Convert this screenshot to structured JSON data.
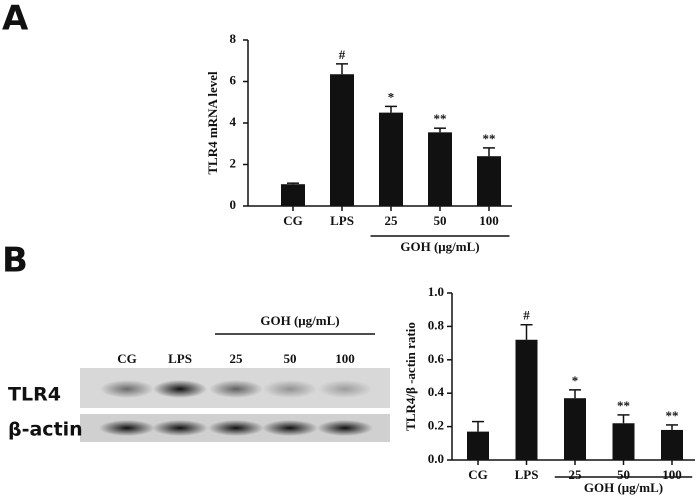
{
  "panels": [
    "A",
    "B"
  ],
  "blot": {
    "group_label": "GOH (μg/mL)",
    "lanes": [
      "CG",
      "LPS",
      "25",
      "50",
      "100"
    ],
    "rows": [
      "TLR4",
      "β-actin"
    ]
  },
  "chart_data": [
    {
      "type": "bar",
      "ylabel": "TLR4 mRNA level",
      "group_label": "GOH (μg/mL)",
      "categories": [
        "CG",
        "LPS",
        "25",
        "50",
        "100"
      ],
      "values": [
        1.05,
        6.35,
        4.5,
        3.55,
        2.4
      ],
      "errors": [
        0.05,
        0.5,
        0.3,
        0.2,
        0.4
      ],
      "annotations": [
        null,
        "#",
        "*",
        "**",
        "**"
      ],
      "color": "#111111",
      "ylim": [
        0,
        8
      ],
      "yticks": [
        0,
        2,
        4,
        6,
        8
      ]
    },
    {
      "type": "bar",
      "ylabel": "TLR4/β -actin ratio",
      "group_label": "GOH (μg/mL)",
      "categories": [
        "CG",
        "LPS",
        "25",
        "50",
        "100"
      ],
      "values": [
        0.17,
        0.72,
        0.37,
        0.22,
        0.18
      ],
      "errors": [
        0.06,
        0.09,
        0.05,
        0.05,
        0.03
      ],
      "annotations": [
        null,
        "#",
        "*",
        "**",
        "**"
      ],
      "color": "#111111",
      "ylim": [
        0,
        1.0
      ],
      "yticks": [
        {
          "value": 0,
          "label": "0.0"
        },
        0.2,
        0.4,
        0.6,
        0.8,
        {
          "value": 1.0,
          "label": "1.0"
        }
      ]
    }
  ]
}
